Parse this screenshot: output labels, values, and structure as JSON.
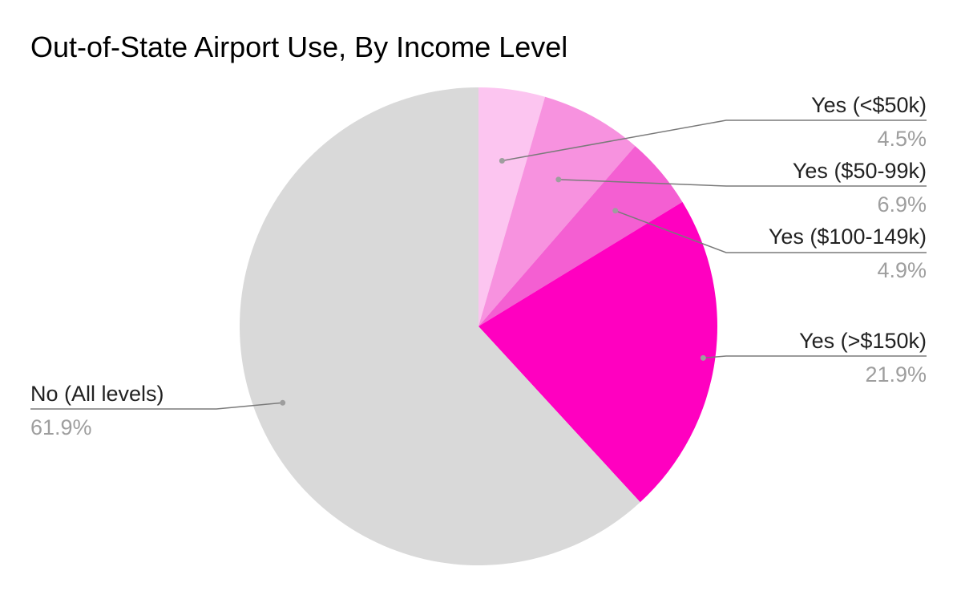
{
  "chart_data": {
    "type": "pie",
    "title": "Out-of-State Airport Use, By Income Level",
    "slices": [
      {
        "label": "Yes (<$50k)",
        "value": 4.5,
        "value_label": "4.5%",
        "color": "#fcc5f0"
      },
      {
        "label": "Yes ($50-99k)",
        "value": 6.9,
        "value_label": "6.9%",
        "color": "#f792df"
      },
      {
        "label": "Yes ($100-149k)",
        "value": 4.9,
        "value_label": "4.9%",
        "color": "#f45fd2"
      },
      {
        "label": "Yes (>$150k)",
        "value": 21.9,
        "value_label": "21.9%",
        "color": "#ff00c0"
      },
      {
        "label": "No (All levels)",
        "value": 61.9,
        "value_label": "61.9%",
        "color": "#d9d9d9"
      }
    ],
    "start_angle": "12 o'clock",
    "direction": "clockwise",
    "legend": "none"
  }
}
